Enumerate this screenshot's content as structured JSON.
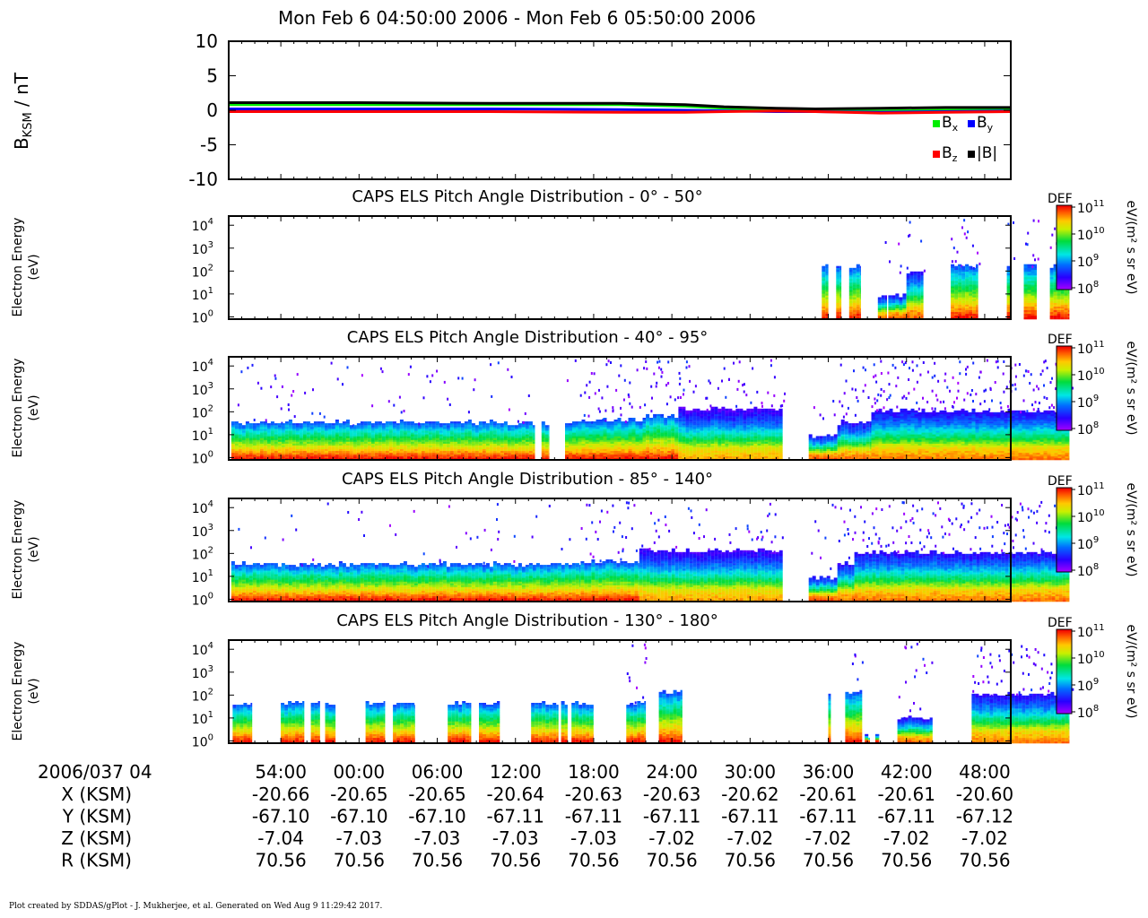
{
  "title": "Mon Feb 6 04:50:00 2006 - Mon Feb 6 05:50:00 2006",
  "chart_data": [
    {
      "type": "line",
      "ylabel_main": "B",
      "ylabel_sub": "KSM",
      "ylabel_unit": " / nT",
      "ylim": [
        -10,
        10
      ],
      "yticks": [
        10,
        5,
        0,
        -5,
        -10
      ],
      "x_minutes_range": [
        50,
        110
      ],
      "legend": [
        {
          "name": "B",
          "sub": "x",
          "color": "#00ee00"
        },
        {
          "name": "B",
          "sub": "y",
          "color": "#0000ff"
        },
        {
          "name": "B",
          "sub": "z",
          "color": "#ff0000"
        },
        {
          "name": "|B|",
          "sub": "",
          "color": "#000000"
        }
      ],
      "series": [
        {
          "name": "Bx",
          "color": "#00ee00",
          "x": [
            50,
            60,
            70,
            80,
            85,
            88,
            92,
            95,
            100,
            105,
            110
          ],
          "y": [
            0.8,
            0.8,
            0.8,
            0.8,
            0.6,
            0.3,
            0.1,
            0.0,
            -0.1,
            0.0,
            0.1
          ]
        },
        {
          "name": "By",
          "color": "#0000ff",
          "x": [
            50,
            60,
            70,
            80,
            85,
            88,
            92,
            95,
            100,
            105,
            110
          ],
          "y": [
            0.2,
            0.2,
            0.2,
            0.1,
            0.0,
            -0.1,
            -0.2,
            -0.2,
            -0.3,
            -0.2,
            -0.1
          ]
        },
        {
          "name": "Bz",
          "color": "#ff0000",
          "x": [
            50,
            60,
            70,
            80,
            85,
            88,
            92,
            95,
            100,
            105,
            110
          ],
          "y": [
            -0.2,
            -0.2,
            -0.2,
            -0.3,
            -0.3,
            -0.2,
            -0.1,
            -0.2,
            -0.4,
            -0.3,
            -0.2
          ]
        },
        {
          "name": "|B|",
          "color": "#000000",
          "x": [
            50,
            60,
            70,
            80,
            85,
            88,
            92,
            95,
            100,
            105,
            110
          ],
          "y": [
            1.1,
            1.1,
            1.0,
            1.0,
            0.8,
            0.5,
            0.3,
            0.2,
            0.3,
            0.4,
            0.4
          ]
        }
      ]
    },
    {
      "type": "heatmap",
      "title": "CAPS ELS Pitch Angle Distribution - 0° - 50°",
      "ylabel": [
        "Electron Energy",
        "(eV)"
      ],
      "ylim_log10": [
        -0.1,
        4.4
      ],
      "yticks_log10": [
        0,
        1,
        2,
        3,
        4
      ],
      "cbar_label": "DEF",
      "cbar_unit": "eV/(m² s sr eV)",
      "cbar_ticks_log10": [
        11,
        10,
        9,
        8
      ],
      "segments": [
        {
          "t0": 95.5,
          "t1": 96.0,
          "top": 2.2,
          "noise": 0.0
        },
        {
          "t0": 96.6,
          "t1": 97.0,
          "top": 2.2,
          "noise": 0.0
        },
        {
          "t0": 97.6,
          "t1": 98.5,
          "top": 2.2,
          "noise": 0.0
        },
        {
          "t0": 99.8,
          "t1": 100.5,
          "top": 0.9,
          "noise": 0.2,
          "floor": 1.2
        },
        {
          "t0": 100.6,
          "t1": 102.0,
          "top": 0.9,
          "noise": 0.2,
          "floor": 1.6
        },
        {
          "t0": 102.0,
          "t1": 103.3,
          "top": 1.9,
          "noise": 0.3,
          "floor": 1.6
        },
        {
          "t0": 105.4,
          "t1": 107.5,
          "top": 2.2,
          "noise": 0.4
        },
        {
          "t0": 109.7,
          "t1": 110.0,
          "top": 2.2,
          "noise": 0.4
        },
        {
          "t0": 111.0,
          "t1": 112.0,
          "top": 2.2,
          "noise": 0.4
        },
        {
          "t0": 113.0,
          "t1": 114.5,
          "top": 2.2,
          "noise": 0.4
        }
      ]
    },
    {
      "type": "heatmap",
      "title": "CAPS ELS Pitch Angle Distribution - 40° - 95°",
      "ylabel": [
        "Electron Energy",
        "(eV)"
      ],
      "ylim_log10": [
        -0.1,
        4.4
      ],
      "yticks_log10": [
        0,
        1,
        2,
        3,
        4
      ],
      "cbar_label": "DEF",
      "cbar_unit": "eV/(m² s sr eV)",
      "cbar_ticks_log10": [
        11,
        10,
        9,
        8
      ],
      "segments": [
        {
          "t0": 50.2,
          "t1": 73.5,
          "top": 1.5,
          "noise": 0.2
        },
        {
          "t0": 74.0,
          "t1": 74.6,
          "top": 1.5,
          "noise": 0.0
        },
        {
          "t0": 75.8,
          "t1": 76.8,
          "top": 1.5,
          "noise": 0.2
        },
        {
          "t0": 76.8,
          "t1": 82.0,
          "top": 1.6,
          "noise": 0.5
        },
        {
          "t0": 82.0,
          "t1": 84.5,
          "top": 1.8,
          "noise": 0.5
        },
        {
          "t0": 84.5,
          "t1": 92.5,
          "top": 2.1,
          "noise": 0.4,
          "floor": 0.3
        },
        {
          "t0": 94.5,
          "t1": 96.7,
          "top": 0.9,
          "noise": 0.2,
          "floor": 1.5
        },
        {
          "t0": 96.7,
          "t1": 99.3,
          "top": 1.5,
          "noise": 0.5,
          "floor": 1.2
        },
        {
          "t0": 99.3,
          "t1": 114.5,
          "top": 2.0,
          "noise": 0.7,
          "floor": 1.1
        }
      ]
    },
    {
      "type": "heatmap",
      "title": "CAPS ELS Pitch Angle Distribution - 85° - 140°",
      "ylabel": [
        "Electron Energy",
        "(eV)"
      ],
      "ylim_log10": [
        -0.1,
        4.4
      ],
      "yticks_log10": [
        0,
        1,
        2,
        3,
        4
      ],
      "cbar_label": "DEF",
      "cbar_unit": "eV/(m² s sr eV)",
      "cbar_ticks_log10": [
        11,
        10,
        9,
        8
      ],
      "segments": [
        {
          "t0": 50.2,
          "t1": 77.0,
          "top": 1.5,
          "noise": 0.1
        },
        {
          "t0": 77.0,
          "t1": 81.5,
          "top": 1.6,
          "noise": 0.4
        },
        {
          "t0": 81.5,
          "t1": 92.5,
          "top": 2.1,
          "noise": 0.3,
          "floor": 0.5
        },
        {
          "t0": 94.5,
          "t1": 96.7,
          "top": 0.9,
          "noise": 0.2,
          "floor": 1.6
        },
        {
          "t0": 96.7,
          "t1": 98.0,
          "top": 1.5,
          "noise": 0.5,
          "floor": 1.3
        },
        {
          "t0": 98.0,
          "t1": 114.5,
          "top": 2.0,
          "noise": 0.6,
          "floor": 1.2
        }
      ]
    },
    {
      "type": "heatmap",
      "title": "CAPS ELS Pitch Angle Distribution - 130° - 180°",
      "ylabel": [
        "Electron Energy",
        "(eV)"
      ],
      "ylim_log10": [
        -0.1,
        4.4
      ],
      "yticks_log10": [
        0,
        1,
        2,
        3,
        4
      ],
      "cbar_label": "DEF",
      "cbar_unit": "eV/(m² s sr eV)",
      "cbar_ticks_log10": [
        11,
        10,
        9,
        8
      ],
      "segments": [
        {
          "t0": 50.3,
          "t1": 51.8,
          "top": 1.6,
          "noise": 0.0
        },
        {
          "t0": 54.0,
          "t1": 55.8,
          "top": 1.6,
          "noise": 0.0
        },
        {
          "t0": 56.3,
          "t1": 57.0,
          "top": 1.6,
          "noise": 0.0
        },
        {
          "t0": 57.4,
          "t1": 58.2,
          "top": 1.6,
          "noise": 0.0
        },
        {
          "t0": 60.5,
          "t1": 62.0,
          "top": 1.6,
          "noise": 0.0
        },
        {
          "t0": 62.6,
          "t1": 64.3,
          "top": 1.6,
          "noise": 0.0
        },
        {
          "t0": 66.8,
          "t1": 68.6,
          "top": 1.6,
          "noise": 0.0
        },
        {
          "t0": 69.2,
          "t1": 70.8,
          "top": 1.6,
          "noise": 0.0
        },
        {
          "t0": 73.2,
          "t1": 75.3,
          "top": 1.6,
          "noise": 0.0
        },
        {
          "t0": 75.5,
          "t1": 76.0,
          "top": 1.6,
          "noise": 0.0
        },
        {
          "t0": 76.3,
          "t1": 78.0,
          "top": 1.6,
          "noise": 0.0
        },
        {
          "t0": 80.5,
          "t1": 82.0,
          "top": 1.6,
          "noise": 0.4
        },
        {
          "t0": 83.0,
          "t1": 84.8,
          "top": 2.1,
          "noise": 0.0
        },
        {
          "t0": 96.0,
          "t1": 96.2,
          "top": 2.1,
          "noise": 0.0
        },
        {
          "t0": 97.3,
          "t1": 98.6,
          "top": 2.1,
          "noise": 0.2
        },
        {
          "t0": 98.8,
          "t1": 99.2,
          "top": 0.2,
          "noise": 0.0,
          "floor": 1.8
        },
        {
          "t0": 99.6,
          "t1": 99.9,
          "top": 0.2,
          "noise": 0.0,
          "floor": 1.8
        },
        {
          "t0": 101.3,
          "t1": 104.0,
          "top": 1.0,
          "noise": 0.4,
          "floor": 1.2
        },
        {
          "t0": 107.0,
          "t1": 114.5,
          "top": 2.0,
          "noise": 0.6,
          "floor": 1.1
        }
      ]
    }
  ],
  "x_axis": {
    "tick_minutes": [
      54,
      60,
      66,
      72,
      78,
      84,
      90,
      96,
      102,
      108
    ],
    "tick_labels": [
      "54:00",
      "00:00",
      "06:00",
      "12:00",
      "18:00",
      "24:00",
      "30:00",
      "36:00",
      "42:00",
      "48:00"
    ]
  },
  "ephemeris": {
    "header": "2006/037 04",
    "rows": [
      {
        "label": "X (KSM)",
        "values": [
          "-20.66",
          "-20.65",
          "-20.65",
          "-20.64",
          "-20.63",
          "-20.63",
          "-20.62",
          "-20.61",
          "-20.61",
          "-20.60"
        ]
      },
      {
        "label": "Y (KSM)",
        "values": [
          "-67.10",
          "-67.10",
          "-67.10",
          "-67.11",
          "-67.11",
          "-67.11",
          "-67.11",
          "-67.11",
          "-67.11",
          "-67.12"
        ]
      },
      {
        "label": "Z (KSM)",
        "values": [
          "-7.04",
          "-7.03",
          "-7.03",
          "-7.03",
          "-7.03",
          "-7.02",
          "-7.02",
          "-7.02",
          "-7.02",
          "-7.02"
        ]
      },
      {
        "label": "R (KSM)",
        "values": [
          "70.56",
          "70.56",
          "70.56",
          "70.56",
          "70.56",
          "70.56",
          "70.56",
          "70.56",
          "70.56",
          "70.56"
        ]
      }
    ]
  },
  "footer": "Plot created by SDDAS/gPlot - J. Mukherjee, et al.  Generated on Wed Aug 9 11:29:42 2017."
}
